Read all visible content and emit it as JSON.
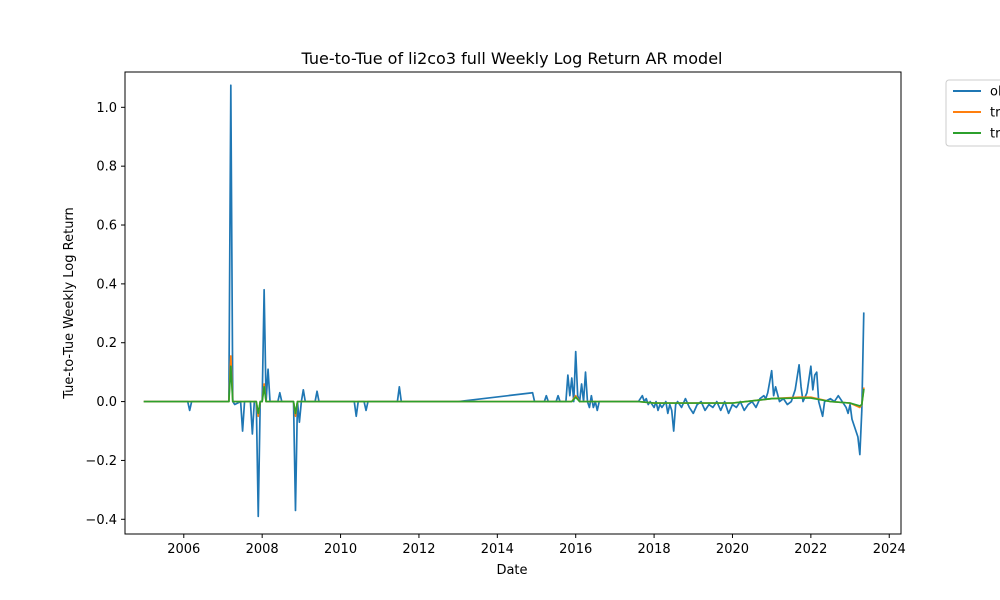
{
  "chart_data": {
    "type": "line",
    "title": "Tue-to-Tue of li2co3 full Weekly Log Return AR model",
    "xlabel": "Date",
    "ylabel": "Tue-to-Tue Weekly Log Return",
    "xlim": [
      2004.5,
      2024.3
    ],
    "ylim": [
      -0.45,
      1.12
    ],
    "x_ticks": [
      2006,
      2008,
      2010,
      2012,
      2014,
      2016,
      2018,
      2020,
      2022,
      2024
    ],
    "y_ticks": [
      -0.4,
      -0.2,
      0.0,
      0.2,
      0.4,
      0.6,
      0.8,
      1.0
    ],
    "y_tick_labels": [
      "−0.4",
      "−0.2",
      "0.0",
      "0.2",
      "0.4",
      "0.6",
      "0.8",
      "1.0"
    ],
    "grid": false,
    "legend_position": "upper-right-outside",
    "series": [
      {
        "name": "ol",
        "color": "#1f77b4",
        "points": [
          [
            2005.0,
            0.0
          ],
          [
            2006.1,
            0.0
          ],
          [
            2006.15,
            -0.03
          ],
          [
            2006.2,
            0.0
          ],
          [
            2007.15,
            0.0
          ],
          [
            2007.2,
            1.075
          ],
          [
            2007.25,
            0.0
          ],
          [
            2007.3,
            -0.01
          ],
          [
            2007.45,
            0.0
          ],
          [
            2007.5,
            -0.1
          ],
          [
            2007.55,
            0.0
          ],
          [
            2007.7,
            0.0
          ],
          [
            2007.75,
            -0.11
          ],
          [
            2007.8,
            0.0
          ],
          [
            2007.85,
            0.0
          ],
          [
            2007.9,
            -0.39
          ],
          [
            2007.95,
            0.0
          ],
          [
            2008.0,
            0.0
          ],
          [
            2008.05,
            0.38
          ],
          [
            2008.1,
            0.0
          ],
          [
            2008.15,
            0.11
          ],
          [
            2008.2,
            0.0
          ],
          [
            2008.4,
            0.0
          ],
          [
            2008.45,
            0.03
          ],
          [
            2008.5,
            0.0
          ],
          [
            2008.8,
            0.0
          ],
          [
            2008.85,
            -0.37
          ],
          [
            2008.9,
            0.0
          ],
          [
            2008.95,
            -0.07
          ],
          [
            2009.0,
            0.0
          ],
          [
            2009.05,
            0.04
          ],
          [
            2009.1,
            0.0
          ],
          [
            2009.35,
            0.0
          ],
          [
            2009.4,
            0.035
          ],
          [
            2009.45,
            0.0
          ],
          [
            2010.35,
            0.0
          ],
          [
            2010.4,
            -0.05
          ],
          [
            2010.45,
            0.0
          ],
          [
            2010.6,
            0.0
          ],
          [
            2010.65,
            -0.03
          ],
          [
            2010.7,
            0.0
          ],
          [
            2011.45,
            0.0
          ],
          [
            2011.5,
            0.05
          ],
          [
            2011.55,
            0.0
          ],
          [
            2013.0,
            0.0
          ],
          [
            2014.9,
            0.03
          ],
          [
            2014.95,
            0.0
          ],
          [
            2015.2,
            0.0
          ],
          [
            2015.25,
            0.02
          ],
          [
            2015.3,
            0.0
          ],
          [
            2015.5,
            0.0
          ],
          [
            2015.55,
            0.02
          ],
          [
            2015.6,
            0.0
          ],
          [
            2015.75,
            0.0
          ],
          [
            2015.8,
            0.09
          ],
          [
            2015.85,
            0.02
          ],
          [
            2015.9,
            0.08
          ],
          [
            2015.95,
            0.0
          ],
          [
            2016.0,
            0.17
          ],
          [
            2016.05,
            0.02
          ],
          [
            2016.1,
            0.0
          ],
          [
            2016.15,
            0.06
          ],
          [
            2016.2,
            0.0
          ],
          [
            2016.25,
            0.1
          ],
          [
            2016.3,
            0.0
          ],
          [
            2016.35,
            -0.02
          ],
          [
            2016.4,
            0.02
          ],
          [
            2016.45,
            -0.02
          ],
          [
            2016.5,
            0.0
          ],
          [
            2016.55,
            -0.03
          ],
          [
            2016.6,
            0.0
          ],
          [
            2017.6,
            0.0
          ],
          [
            2017.7,
            0.02
          ],
          [
            2017.75,
            0.0
          ],
          [
            2017.8,
            0.01
          ],
          [
            2017.85,
            -0.01
          ],
          [
            2017.9,
            0.0
          ],
          [
            2018.0,
            -0.02
          ],
          [
            2018.05,
            0.0
          ],
          [
            2018.1,
            -0.03
          ],
          [
            2018.15,
            -0.01
          ],
          [
            2018.2,
            -0.02
          ],
          [
            2018.3,
            0.0
          ],
          [
            2018.35,
            -0.04
          ],
          [
            2018.4,
            -0.01
          ],
          [
            2018.45,
            -0.03
          ],
          [
            2018.5,
            -0.1
          ],
          [
            2018.55,
            -0.01
          ],
          [
            2018.6,
            0.0
          ],
          [
            2018.7,
            -0.02
          ],
          [
            2018.8,
            0.01
          ],
          [
            2018.9,
            -0.02
          ],
          [
            2019.0,
            -0.04
          ],
          [
            2019.1,
            -0.01
          ],
          [
            2019.2,
            0.0
          ],
          [
            2019.3,
            -0.03
          ],
          [
            2019.4,
            -0.01
          ],
          [
            2019.5,
            -0.02
          ],
          [
            2019.6,
            0.0
          ],
          [
            2019.7,
            -0.03
          ],
          [
            2019.8,
            0.0
          ],
          [
            2019.9,
            -0.04
          ],
          [
            2020.0,
            -0.01
          ],
          [
            2020.1,
            -0.02
          ],
          [
            2020.2,
            0.0
          ],
          [
            2020.3,
            -0.03
          ],
          [
            2020.4,
            -0.01
          ],
          [
            2020.5,
            0.0
          ],
          [
            2020.6,
            -0.02
          ],
          [
            2020.7,
            0.01
          ],
          [
            2020.8,
            0.02
          ],
          [
            2020.85,
            0.01
          ],
          [
            2020.9,
            0.03
          ],
          [
            2021.0,
            0.105
          ],
          [
            2021.05,
            0.02
          ],
          [
            2021.1,
            0.05
          ],
          [
            2021.2,
            0.0
          ],
          [
            2021.3,
            0.01
          ],
          [
            2021.4,
            -0.01
          ],
          [
            2021.5,
            0.0
          ],
          [
            2021.6,
            0.04
          ],
          [
            2021.7,
            0.125
          ],
          [
            2021.75,
            0.05
          ],
          [
            2021.8,
            0.0
          ],
          [
            2021.9,
            0.03
          ],
          [
            2022.0,
            0.12
          ],
          [
            2022.05,
            0.04
          ],
          [
            2022.1,
            0.09
          ],
          [
            2022.15,
            0.1
          ],
          [
            2022.2,
            0.0
          ],
          [
            2022.3,
            -0.05
          ],
          [
            2022.35,
            0.0
          ],
          [
            2022.5,
            0.01
          ],
          [
            2022.6,
            0.0
          ],
          [
            2022.7,
            0.02
          ],
          [
            2022.8,
            0.0
          ],
          [
            2022.9,
            -0.02
          ],
          [
            2022.95,
            -0.04
          ],
          [
            2023.0,
            -0.01
          ],
          [
            2023.05,
            -0.06
          ],
          [
            2023.1,
            -0.08
          ],
          [
            2023.15,
            -0.1
          ],
          [
            2023.2,
            -0.12
          ],
          [
            2023.25,
            -0.18
          ],
          [
            2023.3,
            -0.03
          ],
          [
            2023.35,
            0.3
          ]
        ]
      },
      {
        "name": "tr",
        "color": "#ff7f0e",
        "points": [
          [
            2005.0,
            0.0
          ],
          [
            2007.15,
            0.0
          ],
          [
            2007.2,
            0.155
          ],
          [
            2007.25,
            0.0
          ],
          [
            2007.85,
            0.0
          ],
          [
            2007.9,
            -0.05
          ],
          [
            2007.95,
            0.0
          ],
          [
            2008.0,
            0.0
          ],
          [
            2008.05,
            0.06
          ],
          [
            2008.1,
            0.0
          ],
          [
            2008.8,
            0.0
          ],
          [
            2008.85,
            -0.05
          ],
          [
            2008.9,
            0.0
          ],
          [
            2015.9,
            0.0
          ],
          [
            2016.0,
            0.02
          ],
          [
            2016.1,
            0.0
          ],
          [
            2017.6,
            0.0
          ],
          [
            2018.0,
            -0.005
          ],
          [
            2019.0,
            -0.005
          ],
          [
            2020.0,
            -0.005
          ],
          [
            2021.0,
            0.01
          ],
          [
            2021.7,
            0.015
          ],
          [
            2022.0,
            0.015
          ],
          [
            2022.5,
            0.0
          ],
          [
            2023.0,
            -0.005
          ],
          [
            2023.25,
            -0.02
          ],
          [
            2023.3,
            -0.01
          ],
          [
            2023.35,
            0.045
          ]
        ]
      },
      {
        "name": "tr",
        "color": "#2ca02c",
        "points": [
          [
            2005.0,
            0.0
          ],
          [
            2007.15,
            0.0
          ],
          [
            2007.2,
            0.12
          ],
          [
            2007.25,
            0.0
          ],
          [
            2007.85,
            0.0
          ],
          [
            2007.9,
            -0.04
          ],
          [
            2007.95,
            0.0
          ],
          [
            2008.0,
            0.0
          ],
          [
            2008.05,
            0.05
          ],
          [
            2008.1,
            0.0
          ],
          [
            2008.8,
            0.0
          ],
          [
            2008.85,
            -0.04
          ],
          [
            2008.9,
            0.0
          ],
          [
            2015.9,
            0.0
          ],
          [
            2016.0,
            0.015
          ],
          [
            2016.1,
            0.0
          ],
          [
            2017.6,
            0.0
          ],
          [
            2018.0,
            -0.005
          ],
          [
            2019.0,
            -0.005
          ],
          [
            2020.0,
            -0.005
          ],
          [
            2021.0,
            0.01
          ],
          [
            2021.7,
            0.012
          ],
          [
            2022.0,
            0.012
          ],
          [
            2022.5,
            0.0
          ],
          [
            2023.0,
            -0.005
          ],
          [
            2023.25,
            -0.015
          ],
          [
            2023.3,
            -0.01
          ],
          [
            2023.35,
            0.04
          ]
        ]
      }
    ]
  }
}
